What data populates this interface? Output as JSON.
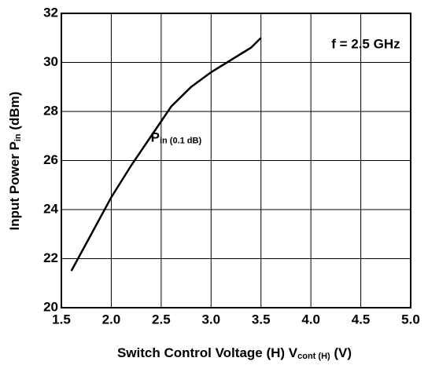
{
  "chart_data": {
    "type": "line",
    "xlabel": {
      "main": "Switch Control Voltage (H)  V",
      "sub": "cont (H)",
      "end": " (V)"
    },
    "ylabel": {
      "main": "Input Power  P",
      "sub": "in",
      "end": " (dBm)"
    },
    "annotations": [
      {
        "main": "P",
        "sub": "in (0.1 dB)",
        "x": 2.65,
        "y": 26.9
      },
      {
        "main": "f = 2.5 GHz",
        "x": 4.55,
        "y": 30.7
      }
    ],
    "x": [
      1.6,
      1.8,
      2.0,
      2.2,
      2.4,
      2.6,
      2.8,
      3.0,
      3.2,
      3.4,
      3.5
    ],
    "series": [
      {
        "name": "Pin (0.1 dB)",
        "color": "#000000",
        "values": [
          21.5,
          23.0,
          24.5,
          25.8,
          27.0,
          28.2,
          29.0,
          29.6,
          30.1,
          30.6,
          31.0
        ]
      }
    ],
    "xlim": [
      1.5,
      5.0
    ],
    "xticks": [
      1.5,
      {
        "value": 2,
        "label": "2.0"
      },
      2.5,
      {
        "value": 3,
        "label": "3.0"
      },
      3.5,
      {
        "value": 4,
        "label": "4.0"
      },
      4.5,
      {
        "value": 5,
        "label": "5.0"
      }
    ],
    "ylim": [
      20,
      32
    ],
    "yticks": [
      20,
      22,
      24,
      26,
      28,
      30,
      32
    ],
    "grid": true
  }
}
